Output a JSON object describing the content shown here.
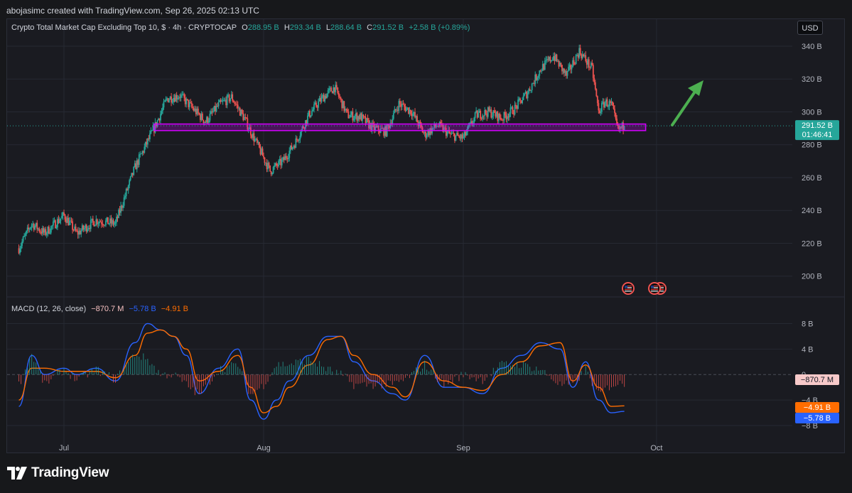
{
  "header": {
    "attribution": "abojasimc created with TradingView.com, Sep 26, 2025 02:13 UTC"
  },
  "main_legend": {
    "title": "Crypto Total Market Cap Excluding Top 10, $ · 4h · CRYPTOCAP",
    "o_label": "O",
    "o_value": "288.95 B",
    "h_label": "H",
    "h_value": "293.34 B",
    "l_label": "L",
    "l_value": "288.64 B",
    "c_label": "C",
    "c_value": "291.52 B",
    "change": "+2.58 B (+0.89%)"
  },
  "currency_button": "USD",
  "macd_legend": {
    "title": "MACD (12, 26, close)",
    "hist_value": "−870.7 M",
    "macd_value": "−5.78 B",
    "signal_value": "−4.91 B"
  },
  "price_badge": {
    "price": "291.52 B",
    "countdown": "01:46:41"
  },
  "macd_badges": {
    "hist": "−870.7 M",
    "signal": "−4.91 B",
    "macd": "−5.78 B"
  },
  "footer": {
    "logo_text": "TradingView"
  },
  "colors": {
    "up": "#26a69a",
    "down": "#ef5350",
    "macd": "#2962ff",
    "signal": "#ff6d00",
    "zone": "#d400ff",
    "arrow": "#4caf50",
    "background": "#1a1b21"
  },
  "icons": [
    "us-flag-event-icon",
    "us-flag-event-icon",
    "arrow-up-right-icon",
    "tradingview-logo-icon"
  ],
  "chart_data": [
    {
      "type": "candlestick",
      "name": "Crypto Total Market Cap Excluding Top 10",
      "unit": "B",
      "y_ticks": [
        "200 B",
        "220 B",
        "240 B",
        "260 B",
        "280 B",
        "300 B",
        "320 B",
        "340 B"
      ],
      "ylim": [
        196,
        343
      ],
      "x_ticks": [
        "Jul",
        "Aug",
        "Sep",
        "Oct"
      ],
      "anchors": [
        [
          "Jun 24",
          217
        ],
        [
          "Jun 26",
          232
        ],
        [
          "Jun 28",
          226
        ],
        [
          "Jul 1",
          237
        ],
        [
          "Jul 3",
          226
        ],
        [
          "Jul 6",
          234
        ],
        [
          "Jul 9",
          232
        ],
        [
          "Jul 12",
          266
        ],
        [
          "Jul 15",
          290
        ],
        [
          "Jul 17",
          308
        ],
        [
          "Jul 19",
          310
        ],
        [
          "Jul 21",
          302
        ],
        [
          "Jul 23",
          294
        ],
        [
          "Jul 25",
          304
        ],
        [
          "Jul 27",
          309
        ],
        [
          "Jul 29",
          296
        ],
        [
          "Jul 31",
          280
        ],
        [
          "Aug 2",
          264
        ],
        [
          "Aug 4",
          270
        ],
        [
          "Aug 6",
          282
        ],
        [
          "Aug 8",
          298
        ],
        [
          "Aug 10",
          308
        ],
        [
          "Aug 12",
          315
        ],
        [
          "Aug 14",
          298
        ],
        [
          "Aug 16",
          297
        ],
        [
          "Aug 18",
          290
        ],
        [
          "Aug 20",
          288
        ],
        [
          "Aug 22",
          305
        ],
        [
          "Aug 24",
          300
        ],
        [
          "Aug 26",
          286
        ],
        [
          "Aug 28",
          292
        ],
        [
          "Aug 30",
          286
        ],
        [
          "Sep 1",
          284
        ],
        [
          "Sep 3",
          298
        ],
        [
          "Sep 5",
          300
        ],
        [
          "Sep 7",
          296
        ],
        [
          "Sep 9",
          302
        ],
        [
          "Sep 11",
          312
        ],
        [
          "Sep 13",
          326
        ],
        [
          "Sep 15",
          334
        ],
        [
          "Sep 17",
          322
        ],
        [
          "Sep 19",
          337
        ],
        [
          "Sep 21",
          326
        ],
        [
          "Sep 22",
          300
        ],
        [
          "Sep 23",
          306
        ],
        [
          "Sep 24",
          304
        ],
        [
          "Sep 25",
          289
        ],
        [
          "Sep 26",
          291.5
        ]
      ],
      "last_price": 291.52,
      "support_zone": [
        288.6,
        292.6
      ],
      "zone_start": "Jul 15",
      "zone_end": "Sep 26",
      "grid": true
    },
    {
      "type": "line",
      "name": "MACD (12, 26, close)",
      "unit": "B",
      "y_ticks": [
        "−8 B",
        "−4 B",
        "0",
        "4 B",
        "8 B"
      ],
      "ylim": [
        -9,
        9.5
      ],
      "series": [
        {
          "name": "MACD",
          "color": "#2962ff",
          "x": [
            "Jun 24",
            "Jun 26",
            "Jun 28",
            "Jul 1",
            "Jul 3",
            "Jul 6",
            "Jul 9",
            "Jul 12",
            "Jul 14",
            "Jul 16",
            "Jul 18",
            "Jul 20",
            "Jul 22",
            "Jul 25",
            "Jul 28",
            "Jul 30",
            "Aug 1",
            "Aug 3",
            "Aug 5",
            "Aug 8",
            "Aug 11",
            "Aug 13",
            "Aug 15",
            "Aug 18",
            "Aug 21",
            "Aug 23",
            "Aug 26",
            "Aug 29",
            "Sep 1",
            "Sep 4",
            "Sep 7",
            "Sep 10",
            "Sep 13",
            "Sep 16",
            "Sep 18",
            "Sep 20",
            "Sep 22",
            "Sep 24",
            "Sep 26"
          ],
          "values": [
            -5,
            3,
            0,
            1,
            0,
            1,
            -1,
            5,
            8,
            7,
            6,
            3,
            -3,
            1,
            4,
            -4,
            -7,
            -4,
            -1,
            3,
            6,
            6,
            2,
            -1,
            -3,
            -4,
            3,
            -2,
            -2,
            -3,
            1,
            3,
            5,
            4,
            -2,
            2,
            -4,
            -6,
            -5.78
          ]
        },
        {
          "name": "Signal",
          "color": "#ff6d00",
          "x": [
            "Jun 24",
            "Jun 26",
            "Jun 28",
            "Jul 1",
            "Jul 3",
            "Jul 6",
            "Jul 9",
            "Jul 12",
            "Jul 14",
            "Jul 16",
            "Jul 18",
            "Jul 20",
            "Jul 22",
            "Jul 25",
            "Jul 28",
            "Jul 30",
            "Aug 1",
            "Aug 3",
            "Aug 5",
            "Aug 8",
            "Aug 11",
            "Aug 13",
            "Aug 15",
            "Aug 18",
            "Aug 21",
            "Aug 23",
            "Aug 26",
            "Aug 29",
            "Sep 1",
            "Sep 4",
            "Sep 7",
            "Sep 10",
            "Sep 13",
            "Sep 16",
            "Sep 18",
            "Sep 20",
            "Sep 22",
            "Sep 24",
            "Sep 26"
          ],
          "values": [
            -4,
            1,
            1,
            0.5,
            0.5,
            0.5,
            -0.5,
            3,
            6.5,
            7,
            6,
            4,
            -1,
            0.5,
            3,
            -2,
            -6,
            -5,
            -2,
            1.5,
            5.5,
            6,
            3,
            0,
            -2,
            -3.5,
            2,
            -1,
            -2,
            -2.5,
            0,
            2,
            4.5,
            5,
            -1,
            1.5,
            -2,
            -5,
            -4.91
          ]
        }
      ],
      "histogram_last": -0.8707,
      "grid": true
    }
  ]
}
